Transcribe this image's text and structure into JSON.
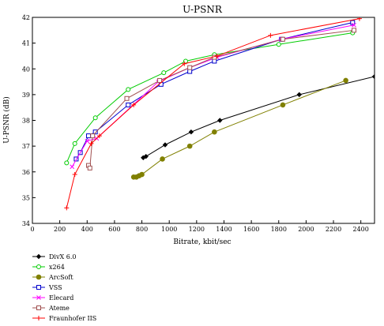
{
  "chart_data": {
    "type": "line",
    "title": "U-PSNR",
    "xlabel": "Bitrate, kbit/sec",
    "ylabel": "U-PSNR (dB)",
    "xlim": [
      0,
      2500
    ],
    "ylim": [
      34,
      42
    ],
    "xticks": [
      0,
      200,
      400,
      600,
      800,
      1000,
      1200,
      1400,
      1600,
      1800,
      2000,
      2200,
      2400
    ],
    "yticks": [
      34,
      35,
      36,
      37,
      38,
      39,
      40,
      41,
      42
    ],
    "grid": false,
    "legend_position": "bottom-left",
    "series": [
      {
        "name": "DivX 6.0",
        "color": "#000000",
        "marker": "diamond",
        "x": [
          810,
          830,
          970,
          1160,
          1370,
          1950,
          2500
        ],
        "y": [
          36.55,
          36.6,
          37.05,
          37.55,
          38.0,
          39.0,
          39.7
        ]
      },
      {
        "name": "x264",
        "color": "#00cc00",
        "marker": "circle-open",
        "x": [
          250,
          310,
          460,
          700,
          960,
          1120,
          1330,
          1800,
          2340
        ],
        "y": [
          36.35,
          37.1,
          38.1,
          39.2,
          39.85,
          40.3,
          40.55,
          40.95,
          41.4
        ]
      },
      {
        "name": "ArcSoft",
        "color": "#808000",
        "marker": "circle-filled",
        "x": [
          740,
          760,
          780,
          800,
          950,
          1150,
          1330,
          1830,
          2290
        ],
        "y": [
          35.8,
          35.8,
          35.85,
          35.9,
          36.5,
          37.0,
          37.55,
          38.6,
          39.55
        ]
      },
      {
        "name": "VSS",
        "color": "#0000cc",
        "marker": "square",
        "x": [
          320,
          350,
          410,
          460,
          700,
          940,
          1150,
          1330,
          1820,
          2340
        ],
        "y": [
          36.5,
          36.75,
          37.4,
          37.55,
          38.6,
          39.4,
          39.9,
          40.3,
          41.15,
          41.8
        ]
      },
      {
        "name": "Elecard",
        "color": "#ff00ff",
        "marker": "x",
        "x": [
          290,
          400,
          470,
          920,
          1150,
          1350,
          1820,
          2350
        ],
        "y": [
          36.2,
          37.2,
          37.3,
          39.5,
          40.05,
          40.45,
          41.15,
          41.7
        ]
      },
      {
        "name": "Ateme",
        "color": "#a05050",
        "marker": "square",
        "x": [
          410,
          420,
          440,
          690,
          930,
          1150,
          1330,
          1830,
          2350
        ],
        "y": [
          36.25,
          36.15,
          37.4,
          38.85,
          39.55,
          40.05,
          40.45,
          41.15,
          41.5
        ]
      },
      {
        "name": "Fraunhofer IIS",
        "color": "#ff0000",
        "marker": "plus",
        "x": [
          250,
          310,
          430,
          490,
          740,
          1110,
          1350,
          1740,
          2390
        ],
        "y": [
          34.6,
          35.9,
          37.1,
          37.4,
          38.6,
          40.2,
          40.5,
          41.3,
          41.95
        ]
      }
    ]
  }
}
